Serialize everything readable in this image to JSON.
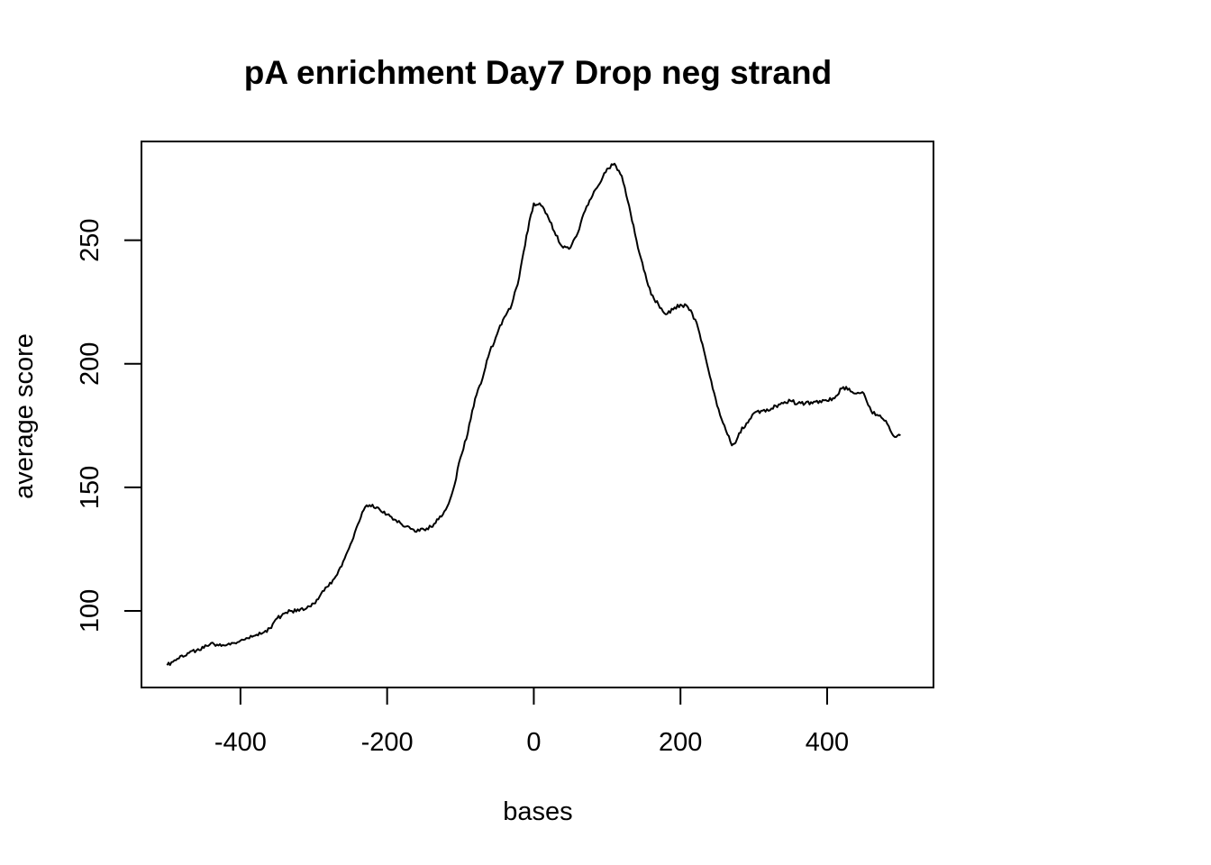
{
  "chart_data": {
    "type": "line",
    "title": "pA enrichment Day7 Drop neg strand",
    "xlabel": "bases",
    "ylabel": "average score",
    "xlim": [
      -535,
      545
    ],
    "ylim": [
      69,
      290
    ],
    "x_ticks": [
      -400,
      -200,
      0,
      200,
      400
    ],
    "x_tick_labels": [
      "-400",
      "-200",
      "0",
      "200",
      "400"
    ],
    "y_ticks": [
      100,
      150,
      200,
      250
    ],
    "y_tick_labels": [
      "100",
      "150",
      "200",
      "250"
    ],
    "grid": false,
    "legend": "none",
    "line_color": "#000000",
    "series": [
      {
        "x": [
          -500,
          -490,
          -480,
          -470,
          -460,
          -450,
          -440,
          -430,
          -420,
          -410,
          -400,
          -390,
          -380,
          -370,
          -360,
          -350,
          -340,
          -330,
          -320,
          -310,
          -300,
          -290,
          -280,
          -270,
          -260,
          -250,
          -240,
          -230,
          -220,
          -210,
          -200,
          -190,
          -180,
          -170,
          -160,
          -150,
          -140,
          -130,
          -120,
          -110,
          -100,
          -90,
          -80,
          -70,
          -60,
          -50,
          -40,
          -30,
          -20,
          -10,
          0,
          10,
          20,
          30,
          40,
          50,
          60,
          70,
          80,
          90,
          100,
          110,
          120,
          130,
          140,
          150,
          160,
          170,
          180,
          190,
          200,
          210,
          220,
          230,
          240,
          250,
          260,
          270,
          275,
          280,
          290,
          300,
          310,
          320,
          330,
          340,
          350,
          360,
          370,
          380,
          390,
          400,
          410,
          420,
          430,
          440,
          450,
          460,
          470,
          480,
          490,
          500
        ],
        "y": [
          78,
          80,
          82,
          83,
          84,
          85,
          87,
          86,
          86,
          87,
          88,
          89,
          90,
          91,
          93,
          97,
          99,
          100,
          100,
          101,
          103,
          107,
          110,
          114,
          120,
          127,
          135,
          142,
          143,
          141,
          139,
          137,
          135,
          134,
          132,
          133,
          134,
          137,
          141,
          149,
          162,
          172,
          186,
          194,
          205,
          212,
          219,
          224,
          235,
          252,
          265,
          264,
          259,
          252,
          247,
          247,
          253,
          262,
          268,
          273,
          279,
          281,
          276,
          264,
          250,
          238,
          228,
          224,
          220,
          222,
          224,
          223,
          218,
          208,
          195,
          183,
          175,
          167,
          168,
          172,
          176,
          180,
          181,
          181,
          183,
          184,
          185,
          184,
          184,
          184,
          185,
          185,
          186,
          190,
          190,
          188,
          188,
          181,
          179,
          177,
          171,
          171
        ]
      }
    ]
  }
}
